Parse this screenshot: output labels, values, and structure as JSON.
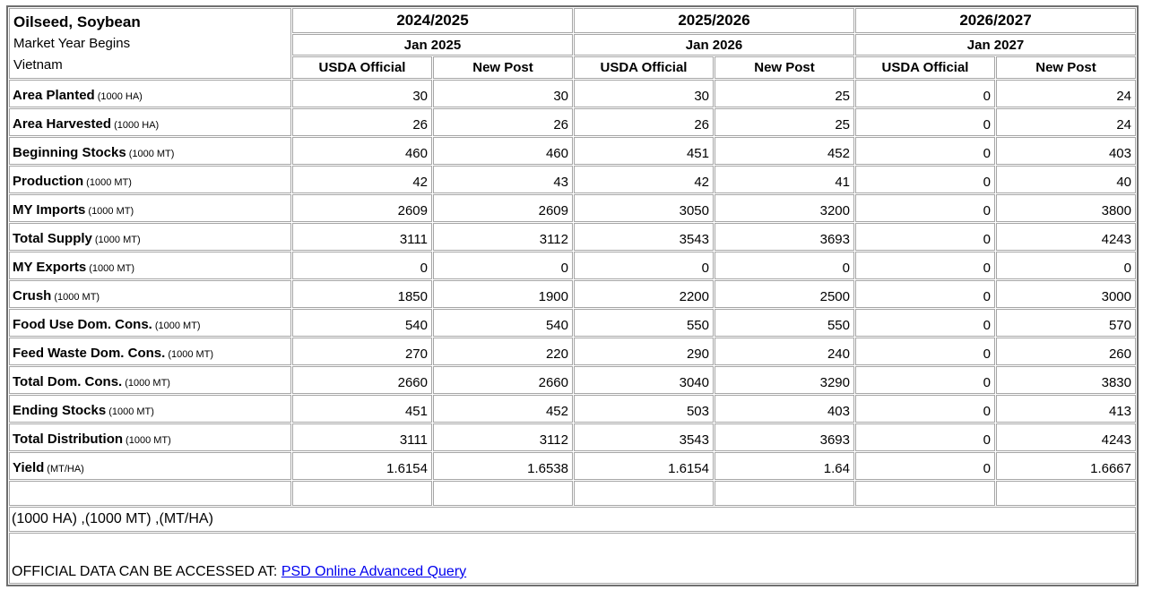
{
  "table": {
    "title_lines": [
      "Oilseed, Soybean",
      "Market Year Begins",
      "Vietnam"
    ],
    "year_groups": [
      {
        "year": "2024/2025",
        "begins": "Jan 2025"
      },
      {
        "year": "2025/2026",
        "begins": "Jan 2026"
      },
      {
        "year": "2026/2027",
        "begins": "Jan 2027"
      }
    ],
    "subcolumns": [
      "USDA Official",
      "New Post"
    ],
    "rows": [
      {
        "label": "Area Planted",
        "unit": "(1000 HA)",
        "values": [
          "30",
          "30",
          "30",
          "25",
          "0",
          "24"
        ]
      },
      {
        "label": "Area Harvested",
        "unit": "(1000 HA)",
        "values": [
          "26",
          "26",
          "26",
          "25",
          "0",
          "24"
        ]
      },
      {
        "label": "Beginning Stocks",
        "unit": "(1000 MT)",
        "values": [
          "460",
          "460",
          "451",
          "452",
          "0",
          "403"
        ]
      },
      {
        "label": "Production",
        "unit": "(1000 MT)",
        "values": [
          "42",
          "43",
          "42",
          "41",
          "0",
          "40"
        ]
      },
      {
        "label": "MY Imports",
        "unit": "(1000 MT)",
        "values": [
          "2609",
          "2609",
          "3050",
          "3200",
          "0",
          "3800"
        ]
      },
      {
        "label": "Total Supply",
        "unit": "(1000 MT)",
        "values": [
          "3111",
          "3112",
          "3543",
          "3693",
          "0",
          "4243"
        ]
      },
      {
        "label": "MY Exports",
        "unit": "(1000 MT)",
        "values": [
          "0",
          "0",
          "0",
          "0",
          "0",
          "0"
        ]
      },
      {
        "label": "Crush",
        "unit": "(1000 MT)",
        "values": [
          "1850",
          "1900",
          "2200",
          "2500",
          "0",
          "3000"
        ]
      },
      {
        "label": "Food Use Dom. Cons.",
        "unit": "(1000 MT)",
        "values": [
          "540",
          "540",
          "550",
          "550",
          "0",
          "570"
        ]
      },
      {
        "label": "Feed Waste Dom. Cons.",
        "unit": "(1000 MT)",
        "values": [
          "270",
          "220",
          "290",
          "240",
          "0",
          "260"
        ]
      },
      {
        "label": "Total Dom. Cons.",
        "unit": "(1000 MT)",
        "values": [
          "2660",
          "2660",
          "3040",
          "3290",
          "0",
          "3830"
        ]
      },
      {
        "label": "Ending Stocks",
        "unit": "(1000 MT)",
        "values": [
          "451",
          "452",
          "503",
          "403",
          "0",
          "413"
        ]
      },
      {
        "label": "Total Distribution",
        "unit": "(1000 MT)",
        "values": [
          "3111",
          "3112",
          "3543",
          "3693",
          "0",
          "4243"
        ]
      },
      {
        "label": "Yield",
        "unit": "(MT/HA)",
        "values": [
          "1.6154",
          "1.6538",
          "1.6154",
          "1.64",
          "0",
          "1.6667"
        ]
      }
    ],
    "units_note": "(1000 HA) ,(1000 MT) ,(MT/HA)",
    "footer": {
      "text": "OFFICIAL DATA CAN BE ACCESSED AT: ",
      "link_label": "PSD Online Advanced Query"
    },
    "colors": {
      "text": "#000000",
      "link": "#0000EE",
      "grid_line": "#a6a6a6",
      "outer_border": "#6f6f6f",
      "background": "#ffffff"
    }
  }
}
